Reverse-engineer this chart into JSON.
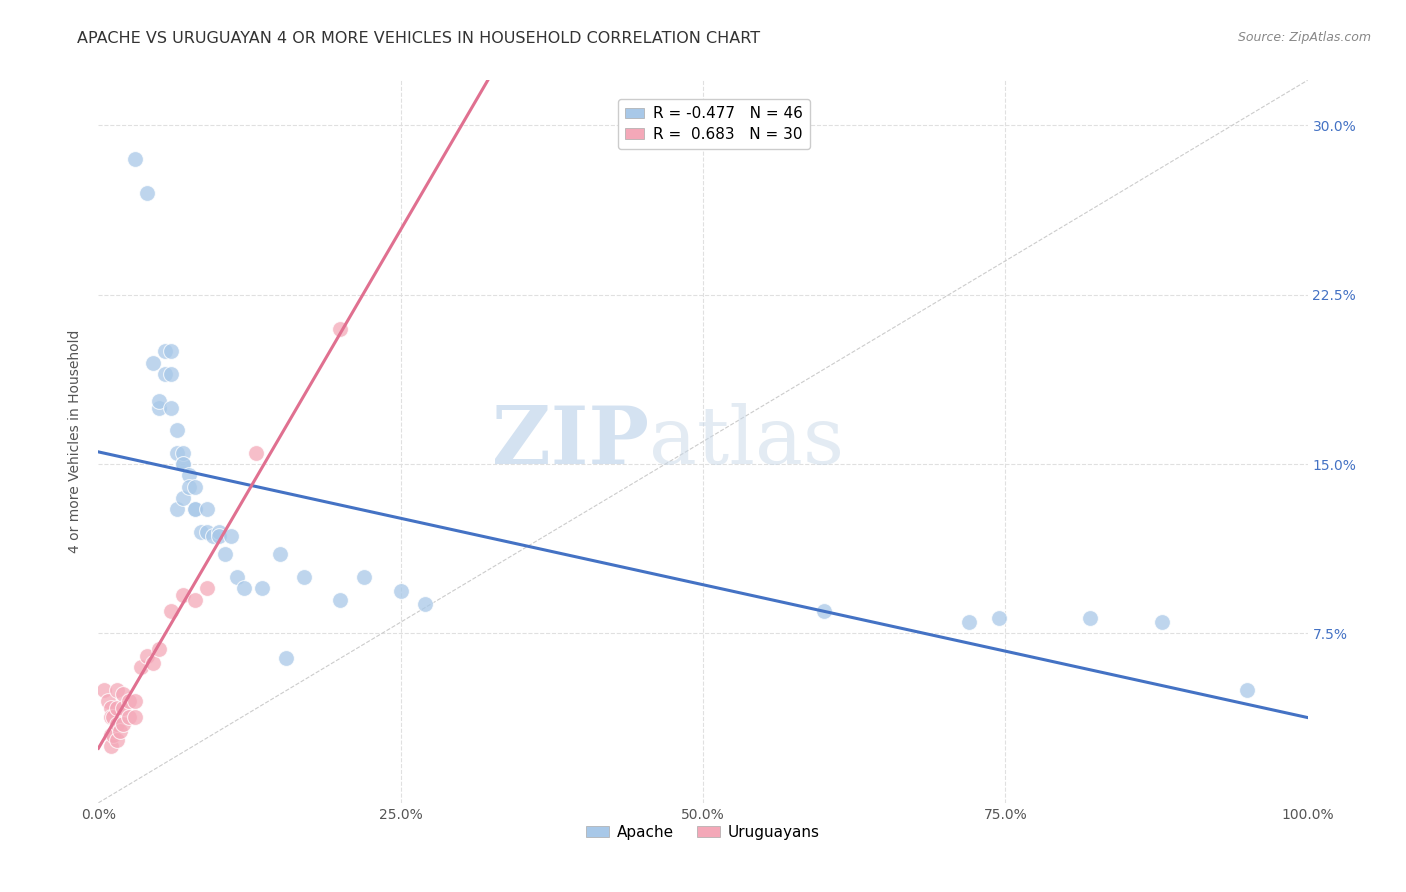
{
  "title": "APACHE VS URUGUAYAN 4 OR MORE VEHICLES IN HOUSEHOLD CORRELATION CHART",
  "source": "Source: ZipAtlas.com",
  "xlabel": "",
  "ylabel": "4 or more Vehicles in Household",
  "xlim": [
    0,
    1.0
  ],
  "ylim": [
    0,
    0.32
  ],
  "xticks": [
    0.0,
    0.25,
    0.5,
    0.75,
    1.0
  ],
  "yticks": [
    0.075,
    0.15,
    0.225,
    0.3
  ],
  "xtick_labels": [
    "0.0%",
    "25.0%",
    "50.0%",
    "75.0%",
    "100.0%"
  ],
  "ytick_labels": [
    "7.5%",
    "15.0%",
    "22.5%",
    "30.0%"
  ],
  "apache_color": "#a8c8e8",
  "uruguayan_color": "#f4a8b8",
  "apache_R": -0.477,
  "apache_N": 46,
  "uruguayan_R": 0.683,
  "uruguayan_N": 30,
  "apache_line_color": "#4472c4",
  "uruguayan_line_color": "#e07090",
  "apache_x": [
    0.03,
    0.04,
    0.045,
    0.05,
    0.05,
    0.055,
    0.055,
    0.06,
    0.06,
    0.06,
    0.065,
    0.065,
    0.065,
    0.07,
    0.07,
    0.07,
    0.07,
    0.075,
    0.075,
    0.08,
    0.08,
    0.08,
    0.085,
    0.09,
    0.09,
    0.095,
    0.1,
    0.1,
    0.105,
    0.11,
    0.115,
    0.12,
    0.135,
    0.15,
    0.155,
    0.17,
    0.2,
    0.22,
    0.25,
    0.27,
    0.6,
    0.72,
    0.745,
    0.82,
    0.88,
    0.95
  ],
  "apache_y": [
    0.285,
    0.27,
    0.195,
    0.175,
    0.178,
    0.19,
    0.2,
    0.175,
    0.19,
    0.2,
    0.155,
    0.165,
    0.13,
    0.15,
    0.155,
    0.135,
    0.15,
    0.145,
    0.14,
    0.13,
    0.13,
    0.14,
    0.12,
    0.13,
    0.12,
    0.118,
    0.12,
    0.118,
    0.11,
    0.118,
    0.1,
    0.095,
    0.095,
    0.11,
    0.064,
    0.1,
    0.09,
    0.1,
    0.094,
    0.088,
    0.085,
    0.08,
    0.082,
    0.082,
    0.08,
    0.05
  ],
  "uruguayan_x": [
    0.005,
    0.008,
    0.01,
    0.01,
    0.01,
    0.01,
    0.012,
    0.012,
    0.015,
    0.015,
    0.015,
    0.015,
    0.018,
    0.02,
    0.02,
    0.02,
    0.025,
    0.025,
    0.03,
    0.03,
    0.035,
    0.04,
    0.045,
    0.05,
    0.06,
    0.07,
    0.08,
    0.09,
    0.13,
    0.2
  ],
  "uruguayan_y": [
    0.05,
    0.045,
    0.042,
    0.038,
    0.03,
    0.025,
    0.038,
    0.03,
    0.05,
    0.042,
    0.035,
    0.028,
    0.032,
    0.048,
    0.042,
    0.035,
    0.045,
    0.038,
    0.045,
    0.038,
    0.06,
    0.065,
    0.062,
    0.068,
    0.085,
    0.092,
    0.09,
    0.095,
    0.155,
    0.21
  ],
  "watermark_zip": "ZIP",
  "watermark_atlas": "atlas",
  "background_color": "#ffffff",
  "grid_color": "#e0e0e0",
  "title_fontsize": 11.5,
  "axis_label_fontsize": 10,
  "tick_fontsize": 10,
  "legend_fontsize": 11
}
